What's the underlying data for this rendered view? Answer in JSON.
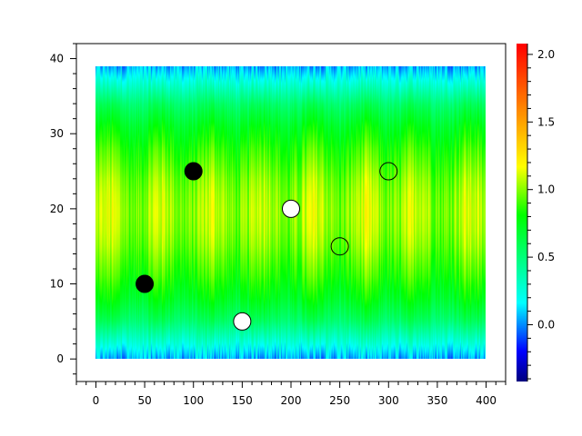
{
  "chart_data": {
    "type": "heatmap",
    "title": "",
    "xlabel": "",
    "ylabel": "",
    "xlim": [
      -20,
      420
    ],
    "ylim": [
      -3,
      42
    ],
    "x_range": [
      0,
      400
    ],
    "y_range": [
      0,
      39
    ],
    "xticks": [
      0,
      50,
      100,
      150,
      200,
      250,
      300,
      350,
      400
    ],
    "yticks": [
      0,
      10,
      20,
      30,
      40
    ],
    "grid": false,
    "y_profile": [
      0.05,
      0.15,
      0.25,
      0.35,
      0.45,
      0.55,
      0.62,
      0.68,
      0.74,
      0.78,
      0.82,
      0.86,
      0.89,
      0.92,
      0.95,
      0.98,
      1.0,
      1.02,
      1.03,
      1.04,
      1.04,
      1.03,
      1.02,
      1.0,
      0.98,
      0.95,
      0.92,
      0.89,
      0.86,
      0.82,
      0.78,
      0.74,
      0.68,
      0.62,
      0.55,
      0.45,
      0.35,
      0.25,
      0.15,
      0.05
    ],
    "colorbar": {
      "range": [
        -0.42,
        2.08
      ],
      "ticks": [
        0.0,
        0.5,
        1.0,
        1.5,
        2.0
      ],
      "tick_labels": [
        "0.0",
        "0.5",
        "1.0",
        "1.5",
        "2.0"
      ],
      "stops": [
        {
          "v": -0.42,
          "color": "#00007f"
        },
        {
          "v": -0.2,
          "color": "#0000ff"
        },
        {
          "v": 0.16,
          "color": "#00ffff"
        },
        {
          "v": 0.81,
          "color": "#00ff00"
        },
        {
          "v": 1.17,
          "color": "#ffff00"
        },
        {
          "v": 2.08,
          "color": "#ff0000"
        }
      ]
    },
    "markers": [
      {
        "x": 50,
        "y": 10,
        "style": "filled",
        "color": "#000000"
      },
      {
        "x": 100,
        "y": 25,
        "style": "filled",
        "color": "#000000"
      },
      {
        "x": 150,
        "y": 5,
        "style": "filled",
        "color": "#ffffff"
      },
      {
        "x": 200,
        "y": 20,
        "style": "filled",
        "color": "#ffffff"
      },
      {
        "x": 250,
        "y": 15,
        "style": "hollow",
        "color": "#000000"
      },
      {
        "x": 300,
        "y": 25,
        "style": "hollow",
        "color": "#000000"
      }
    ]
  }
}
